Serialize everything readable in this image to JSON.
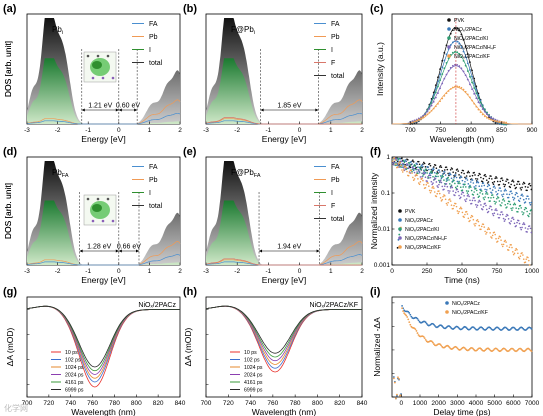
{
  "chart_data": [
    {
      "panel": "(a)",
      "type": "area",
      "inset_label": "Pb",
      "inset_label_sub": "i",
      "xlabel": "Energy [eV]",
      "ylabel": "DOS [arb. unit]",
      "xlim": [
        -3,
        2
      ],
      "xticks": [
        -3,
        -2,
        -1,
        0,
        1,
        2
      ],
      "legend": [
        "FA",
        "Pb",
        "I",
        "total"
      ],
      "annotations": [
        {
          "text": "1.21 eV",
          "from": -1.21,
          "to": 0
        },
        {
          "text": "0.60 eV",
          "from": 0,
          "to": 0.6
        }
      ],
      "vlines": [
        -1.21,
        0,
        0.6
      ]
    },
    {
      "panel": "(b)",
      "type": "area",
      "inset_label": "F@Pb",
      "inset_label_sub": "i",
      "xlabel": "Energy [eV]",
      "ylabel": "DOS [arb. unit]",
      "xlim": [
        -3,
        2
      ],
      "xticks": [
        -3,
        -2,
        -1,
        0,
        1,
        2
      ],
      "legend": [
        "FA",
        "Pb",
        "I",
        "F",
        "total"
      ],
      "annotations": [
        {
          "text": "1.85 eV",
          "from": -1.25,
          "to": 0.6
        }
      ],
      "vlines": [
        -1.25,
        0.6
      ]
    },
    {
      "panel": "(c)",
      "type": "scatter",
      "xlabel": "Wavelength (nm)",
      "ylabel": "Intensity (a.u.)",
      "xlim": [
        670,
        900
      ],
      "xticks": [
        700,
        750,
        800,
        850,
        900
      ],
      "peak_x": 775,
      "series": [
        {
          "name": "PVK",
          "color": "#111111",
          "amp": 1.0,
          "width": 24
        },
        {
          "name": "NiOₓ/2PACz",
          "color": "#3a78b8",
          "amp": 0.86,
          "width": 25
        },
        {
          "name": "NiOₓ/2PACz/KI",
          "color": "#2f9e72",
          "amp": 0.74,
          "width": 26
        },
        {
          "name": "NiOₓ/2PACz/NH₄F",
          "color": "#7d66b8",
          "amp": 0.6,
          "width": 27
        },
        {
          "name": "NiOₓ/2PACz/KF",
          "color": "#f0a050",
          "amp": 0.38,
          "width": 28
        }
      ]
    },
    {
      "panel": "(d)",
      "type": "area",
      "inset_label": "Pb",
      "inset_label_sub": "FA",
      "xlabel": "Energy [eV]",
      "ylabel": "DOS [arb. unit]",
      "xlim": [
        -3,
        2
      ],
      "xticks": [
        -3,
        -2,
        -1,
        0,
        1,
        2
      ],
      "legend": [
        "FA",
        "Pb",
        "I",
        "total"
      ],
      "annotations": [
        {
          "text": "1.28 eV",
          "from": -1.28,
          "to": 0
        },
        {
          "text": "0.66 eV",
          "from": 0,
          "to": 0.66
        }
      ],
      "vlines": [
        -1.28,
        0,
        0.66
      ]
    },
    {
      "panel": "(e)",
      "type": "area",
      "inset_label": "F@Pb",
      "inset_label_sub": "FA",
      "xlabel": "Energy [eV]",
      "ylabel": "DOS [arb. unit]",
      "xlim": [
        -3,
        2
      ],
      "xticks": [
        -3,
        -2,
        -1,
        0,
        1,
        2
      ],
      "legend": [
        "FA",
        "Pb",
        "I",
        "F",
        "total"
      ],
      "annotations": [
        {
          "text": "1.94 eV",
          "from": -1.3,
          "to": 0.64
        }
      ],
      "vlines": [
        -1.3,
        0.64
      ]
    },
    {
      "panel": "(f)",
      "type": "scatter",
      "xlabel": "Time (ns)",
      "ylabel": "Normalized intensity",
      "xlim": [
        0,
        1000
      ],
      "xticks": [
        0,
        250,
        500,
        750,
        1000
      ],
      "ylog": true,
      "ylim": [
        0.001,
        1
      ],
      "yticks": [
        {
          "v": 0.001,
          "label": "0.001"
        },
        {
          "v": 0.01,
          "label": "0.01"
        },
        {
          "v": 0.1,
          "label": "0.1"
        },
        {
          "v": 1,
          "label": "1"
        }
      ],
      "series": [
        {
          "name": "PVK",
          "color": "#111111",
          "tau": 560
        },
        {
          "name": "NiOₓ/2PACz",
          "color": "#3a78b8",
          "tau": 380
        },
        {
          "name": "NiOₓ/2PACz/KI",
          "color": "#2f9e72",
          "tau": 290
        },
        {
          "name": "NiOₓ/2PACz/NH₄F",
          "color": "#7d66b8",
          "tau": 220
        },
        {
          "name": "NiOₓ/2PACz/KF",
          "color": "#f0a050",
          "tau": 150
        }
      ]
    },
    {
      "panel": "(g)",
      "type": "line",
      "inset_label": "NiOₓ/2PACz",
      "inset_color": "#3a78b8",
      "xlabel": "Wavelength (nm)",
      "ylabel": "ΔA (mOD)",
      "xlim": [
        700,
        840
      ],
      "xticks": [
        700,
        720,
        740,
        760,
        780,
        800,
        820,
        840
      ],
      "ylim": [
        -0.07,
        0.01
      ],
      "center": 762,
      "width": 14,
      "series": [
        {
          "name": "10 ps",
          "color": "#e8322d",
          "depth": 0.062
        },
        {
          "name": "102 ps",
          "color": "#3b6fd0",
          "depth": 0.058
        },
        {
          "name": "1024 ps",
          "color": "#e58a2c",
          "depth": 0.055
        },
        {
          "name": "2024 ps",
          "color": "#8b3fb0",
          "depth": 0.052
        },
        {
          "name": "4161 ps",
          "color": "#3a9a3a",
          "depth": 0.049
        },
        {
          "name": "6999 ps",
          "color": "#2a2a2a",
          "depth": 0.046
        }
      ]
    },
    {
      "panel": "(h)",
      "type": "line",
      "inset_label": "NiOₓ/2PACz/KF",
      "inset_color": "#f0a050",
      "xlabel": "Wavelength (nm)",
      "ylabel": "ΔA (mOD)",
      "xlim": [
        700,
        840
      ],
      "xticks": [
        700,
        720,
        740,
        760,
        780,
        800,
        820,
        840
      ],
      "ylim": [
        -0.07,
        0.01
      ],
      "center": 762,
      "width": 14,
      "series": [
        {
          "name": "10 ps",
          "color": "#e8322d",
          "depth": 0.05
        },
        {
          "name": "102 ps",
          "color": "#3b6fd0",
          "depth": 0.047
        },
        {
          "name": "1024 ps",
          "color": "#e58a2c",
          "depth": 0.044
        },
        {
          "name": "2024 ps",
          "color": "#8b3fb0",
          "depth": 0.041
        },
        {
          "name": "4161 ps",
          "color": "#3a9a3a",
          "depth": 0.038
        },
        {
          "name": "6999 ps",
          "color": "#2a2a2a",
          "depth": 0.035
        }
      ]
    },
    {
      "panel": "(i)",
      "type": "scatter",
      "xlabel": "Delay time (ps)",
      "ylabel": "Normalized -ΔA",
      "xlim": [
        -500,
        7000
      ],
      "xticks": [
        0,
        1000,
        2000,
        3000,
        4000,
        5000,
        6000,
        7000
      ],
      "ylim": [
        0.2,
        1.05
      ],
      "yticks": [
        0.2,
        0.4,
        0.6,
        0.8,
        1.0
      ],
      "series": [
        {
          "name": "NiOₓ/2PACz",
          "color": "#3a78b8",
          "plateau": 0.78
        },
        {
          "name": "NiOₓ/2PACz/KF",
          "color": "#f0a050",
          "plateau": 0.6
        }
      ]
    }
  ],
  "watermark": "化学网"
}
